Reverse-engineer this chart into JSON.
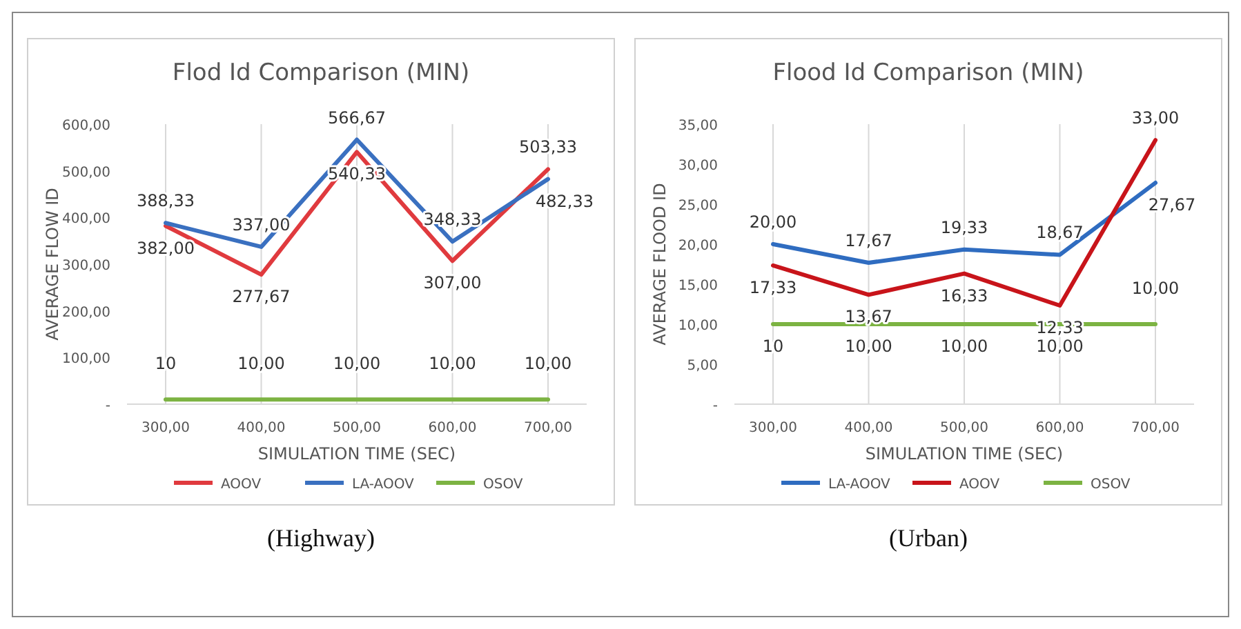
{
  "chart_data": [
    {
      "type": "line",
      "title": "Flod Id Comparison (MIN)",
      "xlabel": "SIMULATION TIME (SEC)",
      "ylabel": "AVERAGE FLOW ID",
      "categories": [
        "300,00",
        "400,00",
        "500,00",
        "600,00",
        "700,00"
      ],
      "series": [
        {
          "name": "AOOV",
          "color": "#e03a3e",
          "values": [
            382,
            277.67,
            540.33,
            307,
            503.33
          ],
          "value_labels": [
            "382,00",
            "277,67",
            "540,33",
            "307,00",
            "503,33"
          ]
        },
        {
          "name": "LA-AOOV",
          "color": "#3a70c0",
          "values": [
            388.33,
            337,
            566.67,
            348.33,
            482.33
          ],
          "value_labels": [
            "388,33",
            "337,00",
            "566,67",
            "348,33",
            "482,33"
          ]
        },
        {
          "name": "OSOV",
          "color": "#7cb342",
          "values": [
            10,
            10,
            10,
            10,
            10
          ],
          "value_labels": [
            "10",
            "10,00",
            "10,00",
            "10,00",
            "10,00"
          ]
        }
      ],
      "ylim": [
        0,
        600
      ],
      "yticks": [
        {
          "value": 0,
          "label": "-"
        },
        {
          "value": 100,
          "label": "100,00"
        },
        {
          "value": 200,
          "label": "200,00"
        },
        {
          "value": 300,
          "label": "300,00"
        },
        {
          "value": 400,
          "label": "400,00"
        },
        {
          "value": 500,
          "label": "500,00"
        },
        {
          "value": 600,
          "label": "600,00"
        }
      ],
      "grid": "x",
      "legend": "bottom",
      "annotations": [
        "(Highway)"
      ]
    },
    {
      "type": "line",
      "title": "Flood Id Comparison (MIN)",
      "xlabel": "SIMULATION TIME (SEC)",
      "ylabel": "AVERAGE FLOOD ID",
      "categories": [
        "300,00",
        "400,00",
        "500,00",
        "600,00",
        "700,00"
      ],
      "series": [
        {
          "name": "LA-AOOV",
          "color": "#2f6cc0",
          "values": [
            20,
            17.67,
            19.33,
            18.67,
            27.67
          ],
          "value_labels": [
            "20,00",
            "17,67",
            "19,33",
            "18,67",
            "27,67"
          ]
        },
        {
          "name": "AOOV",
          "color": "#c8141a",
          "values": [
            17.33,
            13.67,
            16.33,
            12.33,
            33
          ],
          "value_labels": [
            "17,33",
            "13,67",
            "16,33",
            "12,33",
            "33,00"
          ]
        },
        {
          "name": "OSOV",
          "color": "#7cb342",
          "values": [
            10,
            10,
            10,
            10,
            10
          ],
          "value_labels": [
            "10",
            "10,00",
            "10,00",
            "10,00",
            "10,00"
          ]
        }
      ],
      "ylim": [
        0,
        35
      ],
      "yticks": [
        {
          "value": 0,
          "label": "-"
        },
        {
          "value": 5,
          "label": "5,00"
        },
        {
          "value": 10,
          "label": "10,00"
        },
        {
          "value": 15,
          "label": "15,00"
        },
        {
          "value": 20,
          "label": "20,00"
        },
        {
          "value": 25,
          "label": "25,00"
        },
        {
          "value": 30,
          "label": "30,00"
        },
        {
          "value": 35,
          "label": "35,00"
        }
      ],
      "grid": "x",
      "legend": "bottom",
      "annotations": [
        "(Urban)"
      ]
    }
  ]
}
